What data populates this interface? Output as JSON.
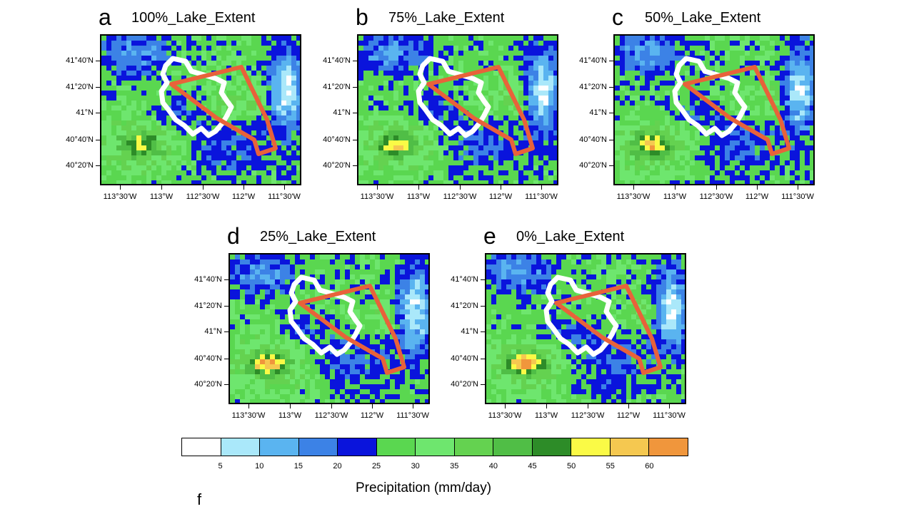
{
  "figure": {
    "panels": [
      {
        "letter": "a",
        "title": "100%_Lake_Extent",
        "variant": 0
      },
      {
        "letter": "b",
        "title": "75%_Lake_Extent",
        "variant": 1
      },
      {
        "letter": "c",
        "title": "50%_Lake_Extent",
        "variant": 2
      },
      {
        "letter": "d",
        "title": "25%_Lake_Extent",
        "variant": 3
      },
      {
        "letter": "e",
        "title": "0%_Lake_Extent",
        "variant": 4
      }
    ],
    "stray_letter": "f"
  },
  "chart_data": {
    "type": "heatmap",
    "subplots": [
      "100%_Lake_Extent",
      "75%_Lake_Extent",
      "50%_Lake_Extent",
      "25%_Lake_Extent",
      "0%_Lake_Extent"
    ],
    "y_ticks": [
      "41°40'N",
      "41°20'N",
      "41°N",
      "40°40'N",
      "40°20'N"
    ],
    "x_ticks": [
      "113°30'W",
      "113°W",
      "112°30'W",
      "112°W",
      "111°30'W"
    ],
    "colorbar": {
      "title": "Precipitation (mm/day)",
      "labels": [
        "5",
        "10",
        "15",
        "20",
        "25",
        "30",
        "35",
        "40",
        "45",
        "50",
        "55",
        "60"
      ],
      "colors": [
        "#ffffff",
        "#aae8fa",
        "#5ab4f0",
        "#3c82e6",
        "#0a14dc",
        "#5ad750",
        "#6ee66e",
        "#64d250",
        "#50be46",
        "#2d8c28",
        "#fafa46",
        "#f5c850",
        "#f0963c"
      ]
    },
    "overlay_colors": {
      "lake_outline": "#ffffff",
      "region_outline": "#e8623a"
    }
  }
}
